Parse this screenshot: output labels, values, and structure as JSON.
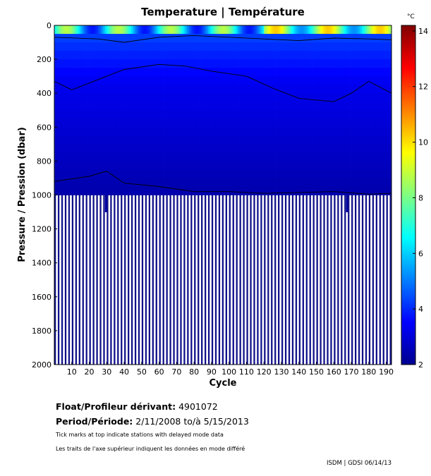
{
  "chart_data": {
    "type": "heatmap",
    "title": "Temperature | Température",
    "xlabel": "Cycle",
    "ylabel": "Pressure / Pression (dbar)",
    "unit": "°C",
    "xlim": [
      0,
      193
    ],
    "ylim": [
      0,
      2000
    ],
    "y_inverted": true,
    "x_ticks": [
      10,
      20,
      30,
      40,
      50,
      60,
      70,
      80,
      90,
      100,
      110,
      120,
      130,
      140,
      150,
      160,
      170,
      180,
      190
    ],
    "y_ticks": [
      0,
      200,
      400,
      600,
      800,
      1000,
      1200,
      1400,
      1600,
      1800,
      2000
    ],
    "colorbar": {
      "range": [
        2,
        14.2
      ],
      "ticks": [
        2,
        4,
        6,
        8,
        10,
        12,
        14
      ],
      "colors": [
        "#00008f",
        "#0000ff",
        "#0080ff",
        "#00ffff",
        "#80ff80",
        "#ffff00",
        "#ff8000",
        "#ff0000",
        "#800000"
      ]
    },
    "contours": [
      {
        "level": 4,
        "depths": [
          [
            0,
            70
          ],
          [
            25,
            80
          ],
          [
            40,
            100
          ],
          [
            60,
            70
          ],
          [
            80,
            60
          ],
          [
            100,
            70
          ],
          [
            120,
            80
          ],
          [
            140,
            90
          ],
          [
            160,
            75
          ],
          [
            180,
            80
          ],
          [
            193,
            85
          ]
        ]
      },
      {
        "level": 3.5,
        "depths": [
          [
            0,
            330
          ],
          [
            10,
            380
          ],
          [
            20,
            340
          ],
          [
            30,
            300
          ],
          [
            40,
            260
          ],
          [
            60,
            230
          ],
          [
            75,
            240
          ],
          [
            90,
            270
          ],
          [
            110,
            300
          ],
          [
            125,
            370
          ],
          [
            140,
            430
          ],
          [
            150,
            440
          ],
          [
            160,
            450
          ],
          [
            170,
            400
          ],
          [
            180,
            330
          ],
          [
            193,
            400
          ]
        ]
      },
      {
        "level": 3,
        "depths": [
          [
            0,
            920
          ],
          [
            20,
            890
          ],
          [
            30,
            860
          ],
          [
            40,
            930
          ],
          [
            60,
            950
          ],
          [
            80,
            980
          ],
          [
            100,
            980
          ],
          [
            120,
            990
          ],
          [
            140,
            985
          ],
          [
            160,
            980
          ],
          [
            180,
            995
          ],
          [
            193,
            990
          ]
        ]
      }
    ],
    "gap_cycles": [
      30,
      168
    ],
    "stations_count": 193
  },
  "info": {
    "float_label": "Float/Profileur dérivant:",
    "float_value": "4901072",
    "period_label": "Period/Période:",
    "period_value": "2/11/2008  to/à  5/15/2013",
    "note_en": "Tick marks at top indicate stations with delayed mode data",
    "note_fr": "Les traits de l'axe supérieur indiquent les données en mode différé",
    "credit": "ISDM | GDSI 06/14/13"
  }
}
